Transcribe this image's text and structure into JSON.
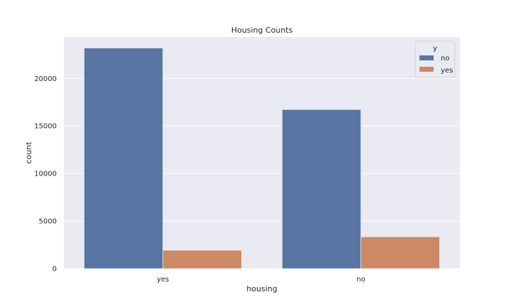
{
  "chart_data": {
    "type": "bar",
    "title": "Housing Counts",
    "xlabel": "housing",
    "ylabel": "count",
    "categories": [
      "yes",
      "no"
    ],
    "series": [
      {
        "name": "no",
        "values": [
          23195,
          16727
        ],
        "color": "#5875a4"
      },
      {
        "name": "yes",
        "values": [
          1935,
          3354
        ],
        "color": "#cc8963"
      }
    ],
    "ylim": [
      0,
      24357
    ],
    "yticks": [
      0,
      5000,
      10000,
      15000,
      20000
    ],
    "legend": {
      "title": "y",
      "position": "top-right"
    },
    "grid": true,
    "background": "#eaeaf2"
  }
}
